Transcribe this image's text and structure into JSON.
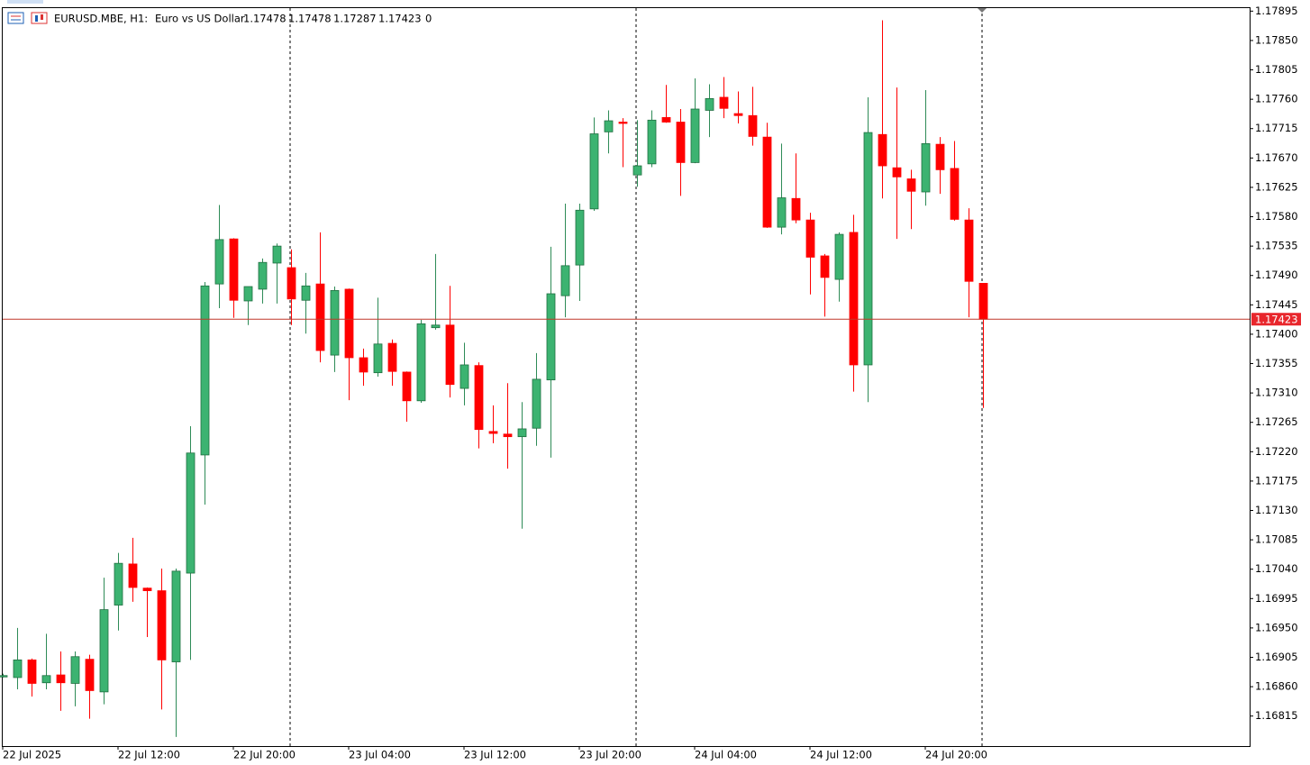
{
  "chart_data": {
    "type": "candlestick",
    "symbol": "EURUSD.MBE, H1:",
    "description": "Euro vs US Dollar",
    "spread": 0,
    "up_color": "#3cb371",
    "down_color": "#ff0000",
    "last_price_line": true,
    "categories": [
      "22 Jul 2025",
      null,
      null,
      null,
      null,
      null,
      null,
      null,
      "22 Jul 12:00",
      null,
      null,
      null,
      null,
      null,
      null,
      null,
      "22 Jul 20:00",
      null,
      null,
      null,
      null,
      null,
      null,
      null,
      "23 Jul 04:00",
      null,
      null,
      null,
      null,
      null,
      null,
      null,
      "23 Jul 12:00",
      null,
      null,
      null,
      null,
      null,
      null,
      null,
      "23 Jul 20:00",
      null,
      null,
      null,
      null,
      null,
      null,
      null,
      "24 Jul 04:00",
      null,
      null,
      null,
      null,
      null,
      null,
      null,
      "24 Jul 12:00",
      null,
      null,
      null,
      null,
      null,
      null,
      null,
      "24 Jul 20:00",
      null,
      null,
      null,
      null
    ],
    "open": [
      1.16877,
      1.16874,
      1.16901,
      1.16866,
      1.16878,
      1.16865,
      1.16902,
      1.16852,
      1.16985,
      1.17048,
      1.17011,
      1.17007,
      1.16898,
      1.17034,
      1.17215,
      1.17477,
      1.17546,
      1.17451,
      1.17469,
      1.17509,
      1.17502,
      1.17452,
      1.17477,
      1.17368,
      1.17469,
      1.17364,
      1.17341,
      1.17386,
      1.17342,
      1.17298,
      1.1741,
      1.17414,
      1.17317,
      1.17352,
      1.17251,
      1.17247,
      1.17243,
      1.17256,
      1.1733,
      1.17459,
      1.17506,
      1.17592,
      1.1771,
      1.17725,
      1.17644,
      1.17661,
      1.17732,
      1.17725,
      1.17663,
      1.17743,
      1.17763,
      1.17738,
      1.17735,
      1.17702,
      1.17564,
      1.17608,
      1.17575,
      1.1752,
      1.17484,
      1.17556,
      1.17353,
      1.17706,
      1.17655,
      1.17638,
      1.17618,
      1.17691,
      1.17654,
      1.17575,
      1.17478
    ],
    "high": [
      1.1688,
      1.1695,
      1.16903,
      1.16941,
      1.16914,
      1.16914,
      1.16909,
      1.17027,
      1.17065,
      1.17088,
      1.17012,
      1.17041,
      1.17041,
      1.17259,
      1.1748,
      1.17598,
      1.17547,
      1.17473,
      1.17516,
      1.17539,
      1.1753,
      1.17494,
      1.17556,
      1.17473,
      1.1747,
      1.17378,
      1.17456,
      1.17392,
      1.17343,
      1.17422,
      1.17523,
      1.17474,
      1.17387,
      1.17357,
      1.17291,
      1.17325,
      1.17296,
      1.17371,
      1.17534,
      1.176,
      1.176,
      1.17732,
      1.17743,
      1.17731,
      1.17728,
      1.17743,
      1.17782,
      1.17745,
      1.17792,
      1.17783,
      1.17794,
      1.17772,
      1.17779,
      1.17724,
      1.17692,
      1.17677,
      1.17586,
      1.17523,
      1.17556,
      1.17583,
      1.17763,
      1.17881,
      1.17778,
      1.17652,
      1.17774,
      1.17702,
      1.17696,
      1.17593,
      1.17478
    ],
    "low": [
      1.16874,
      1.16856,
      1.16845,
      1.16856,
      1.16823,
      1.1683,
      1.16811,
      1.16833,
      1.16946,
      1.1699,
      1.16936,
      1.16825,
      1.16783,
      1.16901,
      1.17139,
      1.1744,
      1.17425,
      1.17414,
      1.17447,
      1.17447,
      1.17414,
      1.17401,
      1.17357,
      1.17342,
      1.17299,
      1.17321,
      1.17335,
      1.17321,
      1.17266,
      1.17295,
      1.17407,
      1.17303,
      1.17291,
      1.17225,
      1.17233,
      1.17194,
      1.17102,
      1.17229,
      1.17211,
      1.17426,
      1.17451,
      1.17589,
      1.17677,
      1.17656,
      1.17626,
      1.17656,
      1.17724,
      1.17612,
      1.17662,
      1.17702,
      1.17731,
      1.17723,
      1.17689,
      1.17563,
      1.17553,
      1.1757,
      1.17461,
      1.17427,
      1.1745,
      1.17312,
      1.17296,
      1.17608,
      1.17546,
      1.17561,
      1.17597,
      1.17615,
      1.17574,
      1.17426,
      1.17287
    ],
    "close": [
      1.16877,
      1.16901,
      1.16865,
      1.16877,
      1.16866,
      1.16906,
      1.16854,
      1.16978,
      1.17049,
      1.17012,
      1.17007,
      1.16901,
      1.17037,
      1.17218,
      1.17474,
      1.17545,
      1.17452,
      1.17473,
      1.1751,
      1.17535,
      1.17454,
      1.17474,
      1.17375,
      1.17467,
      1.17364,
      1.17342,
      1.17385,
      1.17343,
      1.17298,
      1.17416,
      1.17414,
      1.17323,
      1.17353,
      1.17254,
      1.17248,
      1.17243,
      1.17255,
      1.17331,
      1.17462,
      1.17505,
      1.1759,
      1.17707,
      1.17727,
      1.17723,
      1.17658,
      1.17728,
      1.17725,
      1.17663,
      1.17745,
      1.17761,
      1.17746,
      1.17735,
      1.17703,
      1.17564,
      1.17609,
      1.17575,
      1.17518,
      1.17487,
      1.17553,
      1.17353,
      1.17709,
      1.17658,
      1.17641,
      1.17619,
      1.17692,
      1.17652,
      1.17576,
      1.17481,
      1.17423
    ],
    "ylim": [
      1.16769,
      1.17901
    ],
    "yticks": [
      1.17895,
      {
        "value": 1.1785,
        "label": "1.17850"
      },
      1.17805,
      {
        "value": 1.1776,
        "label": "1.17760"
      },
      1.17715,
      {
        "value": 1.1767,
        "label": "1.17670"
      },
      1.17625,
      {
        "value": 1.1758,
        "label": "1.17580"
      },
      1.17535,
      {
        "value": 1.1749,
        "label": "1.17490"
      },
      1.17445,
      {
        "value": 1.174,
        "label": "1.17400"
      },
      1.17355,
      {
        "value": 1.1731,
        "label": "1.17310"
      },
      1.17265,
      {
        "value": 1.1722,
        "label": "1.17220"
      },
      1.17175,
      {
        "value": 1.1713,
        "label": "1.17130"
      },
      1.17085,
      {
        "value": 1.1704,
        "label": "1.17040"
      },
      1.16995,
      {
        "value": 1.1695,
        "label": "1.16950"
      },
      1.16905,
      {
        "value": 1.1686,
        "label": "1.16860"
      },
      1.16815
    ]
  }
}
